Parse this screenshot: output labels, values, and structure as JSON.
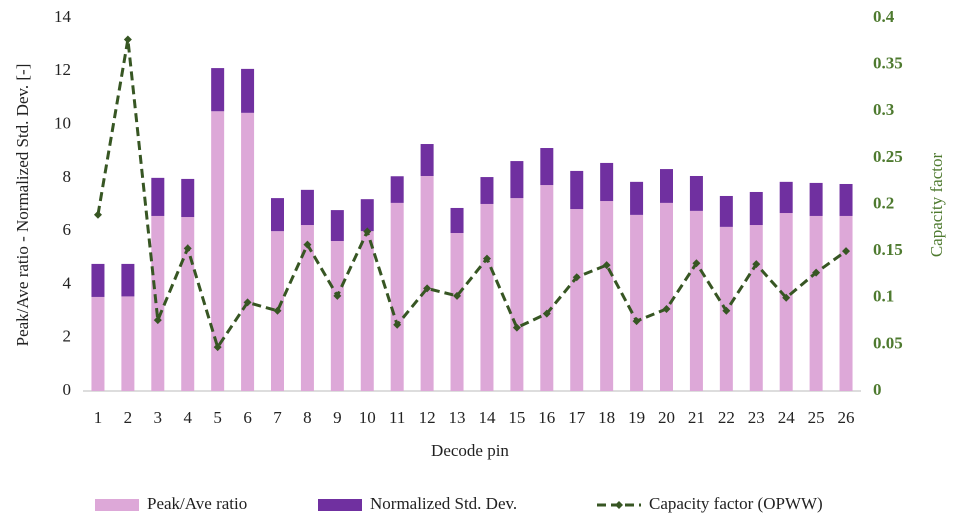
{
  "chart_data": {
    "type": "bar",
    "x_label": "Decode pin",
    "y_label": "Peak/Ave ratio - Normalized Std. Dev. [-]",
    "y2_label": "Capacity factor",
    "categories": [
      "1",
      "2",
      "3",
      "4",
      "5",
      "6",
      "7",
      "8",
      "9",
      "10",
      "11",
      "12",
      "13",
      "14",
      "15",
      "16",
      "17",
      "18",
      "19",
      "20",
      "21",
      "22",
      "23",
      "24",
      "25",
      "26"
    ],
    "stacked": true,
    "series": [
      {
        "name": "Peak/Ave ratio",
        "color": "#dda8d8",
        "values": [
          3.53,
          3.55,
          6.57,
          6.53,
          10.5,
          10.44,
          6.0,
          6.23,
          5.63,
          6.0,
          7.06,
          8.07,
          5.93,
          7.02,
          7.24,
          7.73,
          6.83,
          7.13,
          6.61,
          7.06,
          6.76,
          6.16,
          6.23,
          6.68,
          6.57,
          6.57
        ]
      },
      {
        "name": "Normalized Std. Dev.",
        "color": "#7030a0",
        "values": [
          1.24,
          1.22,
          1.43,
          1.43,
          1.62,
          1.65,
          1.24,
          1.32,
          1.16,
          1.2,
          1.0,
          1.2,
          0.94,
          1.01,
          1.39,
          1.39,
          1.43,
          1.43,
          1.24,
          1.27,
          1.31,
          1.16,
          1.24,
          1.17,
          1.24,
          1.2
        ]
      },
      {
        "name": "Capacity factor (OPWW)",
        "type": "line",
        "axis": "y2",
        "color": "#375623",
        "values": [
          0.189,
          0.377,
          0.076,
          0.153,
          0.047,
          0.095,
          0.086,
          0.157,
          0.102,
          0.171,
          0.071,
          0.11,
          0.102,
          0.142,
          0.068,
          0.083,
          0.122,
          0.135,
          0.075,
          0.088,
          0.137,
          0.086,
          0.136,
          0.1,
          0.127,
          0.15
        ]
      }
    ],
    "ylim": [
      0,
      14
    ],
    "yticks": [
      0,
      2,
      4,
      6,
      8,
      10,
      12,
      14
    ],
    "y2lim": [
      0,
      0.4
    ],
    "y2ticks": [
      0,
      0.05,
      0.1,
      0.15,
      0.2,
      0.25,
      0.3,
      0.35,
      0.4
    ],
    "legend": "bottom"
  }
}
